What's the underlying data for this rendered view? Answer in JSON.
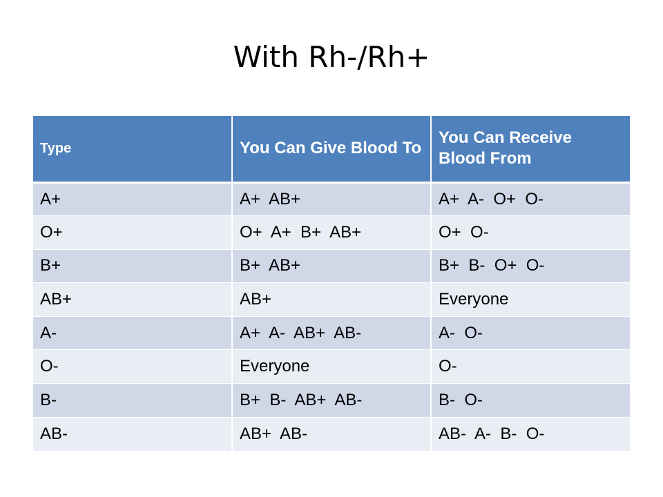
{
  "slide": {
    "title": "With Rh-/Rh+"
  },
  "table": {
    "headers": [
      "Type",
      "You Can Give Blood To",
      "You Can Receive Blood From"
    ],
    "rows": [
      [
        "A+",
        "A+  AB+",
        "A+  A-  O+  O-"
      ],
      [
        "O+",
        "O+  A+  B+  AB+",
        "O+  O-"
      ],
      [
        "B+",
        "B+  AB+",
        "B+  B-  O+  O-"
      ],
      [
        "AB+",
        "AB+",
        "Everyone"
      ],
      [
        "A-",
        "A+  A-  AB+  AB-",
        "A-  O-"
      ],
      [
        "O-",
        "Everyone",
        "O-"
      ],
      [
        "B-",
        "B+  B-  AB+  AB-",
        "B-  O-"
      ],
      [
        "AB-",
        "AB+  AB-",
        "AB-  A-  B-  O-"
      ]
    ]
  },
  "colors": {
    "header_bg": "#4f81bd",
    "row_odd_bg": "#d0d8e8",
    "row_even_bg": "#e9edf4"
  }
}
